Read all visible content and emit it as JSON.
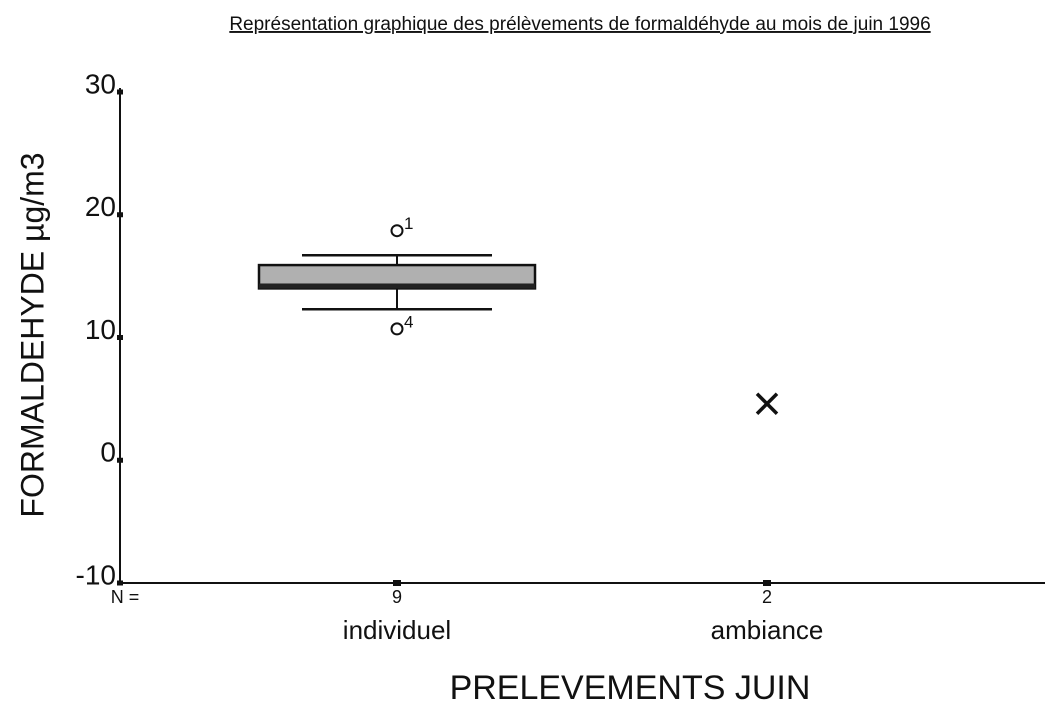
{
  "chart_data": {
    "type": "box",
    "title": "Représentation graphique des prélèvements de formaldéhyde au mois de juin 1996",
    "x_label": "PRELEVEMENTS JUIN",
    "y_label": "FORMALDEHYDE µg/m3",
    "categories": [
      "individuel",
      "ambiance"
    ],
    "count_label": "N =",
    "counts": [
      9,
      2
    ],
    "boxes": [
      {
        "whislo": 12.3,
        "q1": 14.0,
        "med": 14.4,
        "q3": 15.9,
        "whishi": 16.7,
        "fliers": [
          {
            "value": 18.7,
            "case": "1"
          },
          {
            "value": 10.7,
            "case": "4"
          }
        ]
      },
      {
        "med": 4.6
      }
    ],
    "box_color": "#b0b0b0",
    "ylim": [
      -10,
      30
    ],
    "yticks": [
      -10,
      0,
      10,
      20,
      30
    ]
  }
}
